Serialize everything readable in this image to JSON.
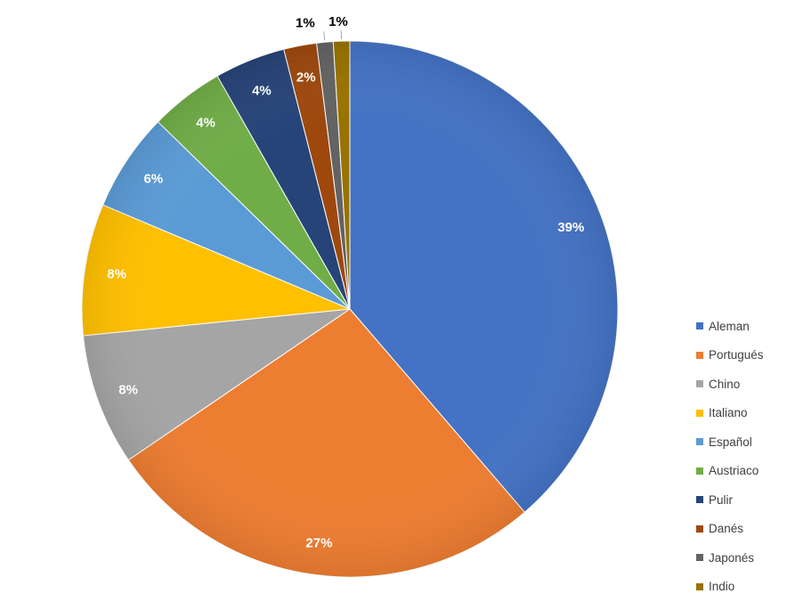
{
  "chart_data": {
    "type": "pie",
    "slices": [
      {
        "label": "Aleman",
        "value": 39,
        "display": "39%",
        "color": "#4472C4",
        "label_color": "#ffffff"
      },
      {
        "label": "Portugués",
        "value": 27,
        "display": "27%",
        "color": "#ED7D31",
        "label_color": "#ffffff"
      },
      {
        "label": "Chino",
        "value": 8,
        "display": "8%",
        "color": "#A5A5A5",
        "label_color": "#ffffff"
      },
      {
        "label": "Italiano",
        "value": 8,
        "display": "8%",
        "color": "#FFC000",
        "label_color": "#ffffff"
      },
      {
        "label": "Español",
        "value": 6,
        "display": "6%",
        "color": "#5B9BD5",
        "label_color": "#ffffff"
      },
      {
        "label": "Austriaco",
        "value": 4.5,
        "display": "4%",
        "color": "#70AD47",
        "label_color": "#ffffff"
      },
      {
        "label": "Pulir",
        "value": 4.3,
        "display": "4%",
        "color": "#264478",
        "label_color": "#ffffff"
      },
      {
        "label": "Danés",
        "value": 2,
        "display": "2%",
        "color": "#9E480E",
        "label_color": "#ffffff"
      },
      {
        "label": "Japonés",
        "value": 1,
        "display": "1%",
        "color": "#636363",
        "label_color": "#000000"
      },
      {
        "label": "Indio",
        "value": 1,
        "display": "1%",
        "color": "#997300",
        "label_color": "#000000"
      }
    ],
    "start_angle_deg": 0,
    "direction": "clockwise",
    "legend_position": "right"
  }
}
